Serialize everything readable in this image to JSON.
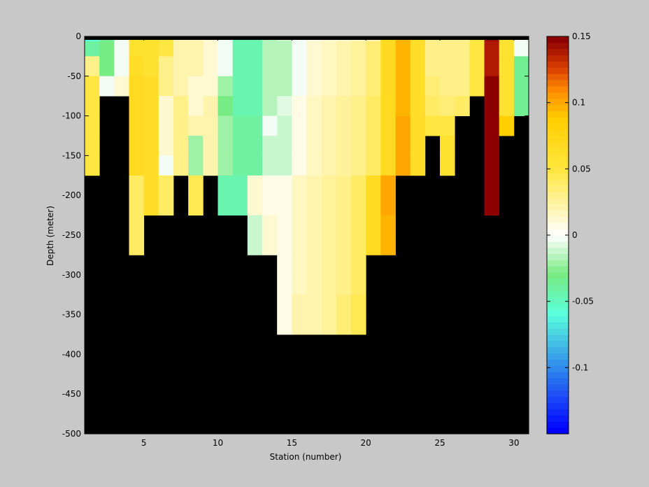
{
  "chart_data": {
    "type": "heatmap",
    "xlabel": "Station (number)",
    "ylabel": "Depth (meter)",
    "xlim": [
      1,
      31
    ],
    "ylim": [
      -500,
      0
    ],
    "xticks": [
      5,
      10,
      15,
      20,
      25,
      30
    ],
    "yticks": [
      0,
      -50,
      -100,
      -150,
      -200,
      -250,
      -300,
      -350,
      -400,
      -450,
      -500
    ],
    "stations": [
      1,
      2,
      3,
      4,
      5,
      6,
      7,
      8,
      9,
      10,
      11,
      12,
      13,
      14,
      15,
      16,
      17,
      18,
      19,
      20,
      21,
      22,
      23,
      24,
      25,
      26,
      27,
      28,
      29,
      30
    ],
    "depth_levels": [
      0,
      -12.5,
      -37.5,
      -62.5,
      -87.5,
      -112.5,
      -137.5,
      -162.5,
      -187.5,
      -212.5,
      -237.5,
      -262.5,
      -287.5,
      -312.5,
      -337.5,
      -362.5,
      -387.5
    ],
    "no_data_color": "#000000",
    "colorbar": {
      "clim": [
        -0.15,
        0.15
      ],
      "ticks": [
        0.15,
        0.1,
        0.05,
        0,
        -0.05,
        -0.1
      ],
      "tick_labels": [
        "0.15",
        "0.1",
        "0.05",
        "0",
        "-0.05",
        "-0.1"
      ]
    },
    "values": [
      [
        -0.06,
        -0.035,
        0.0,
        0.06,
        0.06,
        0.05,
        0.02,
        0.02,
        0.01,
        0.0,
        -0.045,
        -0.045,
        -0.015,
        -0.01,
        0.0,
        0.005,
        0.01,
        0.01,
        0.015,
        0.02,
        0.07,
        0.095,
        0.065,
        0.03,
        0.03,
        0.03,
        0.05,
        0.145,
        0.06,
        0.0
      ],
      [
        -0.04,
        -0.03,
        0.0,
        0.06,
        0.06,
        0.05,
        0.02,
        0.02,
        0.01,
        0.0,
        -0.045,
        -0.045,
        -0.015,
        -0.015,
        0.0,
        0.01,
        0.015,
        0.02,
        0.025,
        0.035,
        0.07,
        0.095,
        0.065,
        0.03,
        0.03,
        0.03,
        0.05,
        0.14,
        0.06,
        0.0
      ],
      [
        0.03,
        -0.03,
        0.0,
        0.065,
        0.06,
        0.03,
        0.02,
        0.02,
        0.01,
        0.0,
        -0.045,
        -0.045,
        -0.015,
        -0.015,
        0.0,
        0.01,
        0.015,
        0.02,
        0.025,
        0.035,
        0.07,
        0.095,
        0.065,
        0.03,
        0.03,
        0.03,
        0.05,
        0.14,
        0.06,
        -0.035
      ],
      [
        0.05,
        0.0,
        0.01,
        0.07,
        0.065,
        0.03,
        0.02,
        0.01,
        0.01,
        -0.02,
        -0.045,
        -0.045,
        -0.015,
        -0.015,
        0.0,
        0.01,
        0.015,
        0.02,
        0.025,
        0.035,
        0.07,
        0.095,
        0.065,
        0.035,
        0.03,
        0.03,
        0.05,
        0.15,
        0.06,
        -0.035
      ],
      [
        0.05,
        null,
        null,
        0.07,
        0.065,
        0.01,
        0.03,
        0.01,
        0.02,
        -0.03,
        -0.045,
        -0.045,
        -0.015,
        -0.005,
        0.005,
        0.015,
        0.02,
        0.025,
        0.03,
        0.04,
        0.07,
        0.095,
        0.065,
        0.04,
        0.035,
        0.04,
        null,
        0.15,
        0.06,
        -0.035
      ],
      [
        0.05,
        null,
        null,
        0.07,
        0.065,
        0.01,
        0.03,
        0.02,
        0.02,
        -0.02,
        -0.04,
        -0.04,
        0.0,
        -0.01,
        0.005,
        0.015,
        0.02,
        0.025,
        0.03,
        0.04,
        0.07,
        0.1,
        0.065,
        0.05,
        0.05,
        null,
        null,
        0.15,
        0.085,
        null
      ],
      [
        0.05,
        null,
        null,
        0.07,
        0.065,
        0.01,
        0.03,
        -0.02,
        0.02,
        -0.02,
        -0.04,
        -0.04,
        -0.01,
        -0.01,
        0.005,
        0.015,
        0.02,
        0.025,
        0.03,
        0.04,
        0.07,
        0.1,
        0.065,
        null,
        0.06,
        null,
        null,
        0.15,
        null,
        null
      ],
      [
        0.05,
        null,
        null,
        0.07,
        0.065,
        0.0,
        0.03,
        -0.02,
        0.02,
        -0.02,
        -0.04,
        -0.04,
        -0.01,
        -0.01,
        0.005,
        0.015,
        0.02,
        0.025,
        0.03,
        0.04,
        0.07,
        0.1,
        0.065,
        null,
        0.06,
        null,
        null,
        0.15,
        null,
        null
      ],
      [
        null,
        null,
        null,
        0.04,
        0.065,
        0.04,
        null,
        0.045,
        null,
        -0.045,
        -0.045,
        0.01,
        0.005,
        0.005,
        0.015,
        0.02,
        0.025,
        0.03,
        0.04,
        0.07,
        0.1,
        null,
        null,
        null,
        null,
        null,
        null,
        0.15,
        null,
        null
      ],
      [
        null,
        null,
        null,
        0.04,
        0.065,
        0.04,
        null,
        0.045,
        null,
        -0.045,
        -0.045,
        0.01,
        0.005,
        0.005,
        0.015,
        0.02,
        0.025,
        0.03,
        0.04,
        0.07,
        0.1,
        null,
        null,
        null,
        null,
        null,
        null,
        0.15,
        null,
        null
      ],
      [
        null,
        null,
        null,
        0.04,
        null,
        null,
        null,
        null,
        null,
        null,
        null,
        -0.01,
        0.01,
        0.005,
        0.015,
        0.02,
        0.025,
        0.03,
        0.04,
        0.07,
        0.095,
        null,
        null,
        null,
        null,
        null,
        null,
        null,
        null,
        null
      ],
      [
        null,
        null,
        null,
        0.04,
        null,
        null,
        null,
        null,
        null,
        null,
        null,
        -0.01,
        0.01,
        0.005,
        0.015,
        0.02,
        0.025,
        0.03,
        0.04,
        0.07,
        0.095,
        null,
        null,
        null,
        null,
        null,
        null,
        null,
        null,
        null
      ],
      [
        null,
        null,
        null,
        null,
        null,
        null,
        null,
        null,
        null,
        null,
        null,
        null,
        null,
        0.005,
        0.015,
        0.02,
        0.025,
        0.03,
        0.04,
        null,
        null,
        null,
        null,
        null,
        null,
        null,
        null,
        null,
        null,
        null
      ],
      [
        null,
        null,
        null,
        null,
        null,
        null,
        null,
        null,
        null,
        null,
        null,
        null,
        null,
        0.005,
        0.015,
        0.02,
        0.025,
        0.03,
        0.04,
        null,
        null,
        null,
        null,
        null,
        null,
        null,
        null,
        null,
        null,
        null
      ],
      [
        null,
        null,
        null,
        null,
        null,
        null,
        null,
        null,
        null,
        null,
        null,
        null,
        null,
        0.005,
        0.02,
        0.02,
        0.025,
        0.035,
        0.045,
        null,
        null,
        null,
        null,
        null,
        null,
        null,
        null,
        null,
        null,
        null
      ],
      [
        null,
        null,
        null,
        null,
        null,
        null,
        null,
        null,
        null,
        null,
        null,
        null,
        null,
        0.005,
        0.02,
        0.02,
        0.025,
        0.035,
        0.045,
        null,
        null,
        null,
        null,
        null,
        null,
        null,
        null,
        null,
        null,
        null
      ],
      [
        null,
        null,
        null,
        null,
        null,
        null,
        null,
        null,
        null,
        null,
        null,
        null,
        null,
        null,
        null,
        null,
        null,
        null,
        null,
        null,
        null,
        null,
        null,
        null,
        null,
        null,
        null,
        null,
        null,
        null
      ]
    ]
  }
}
